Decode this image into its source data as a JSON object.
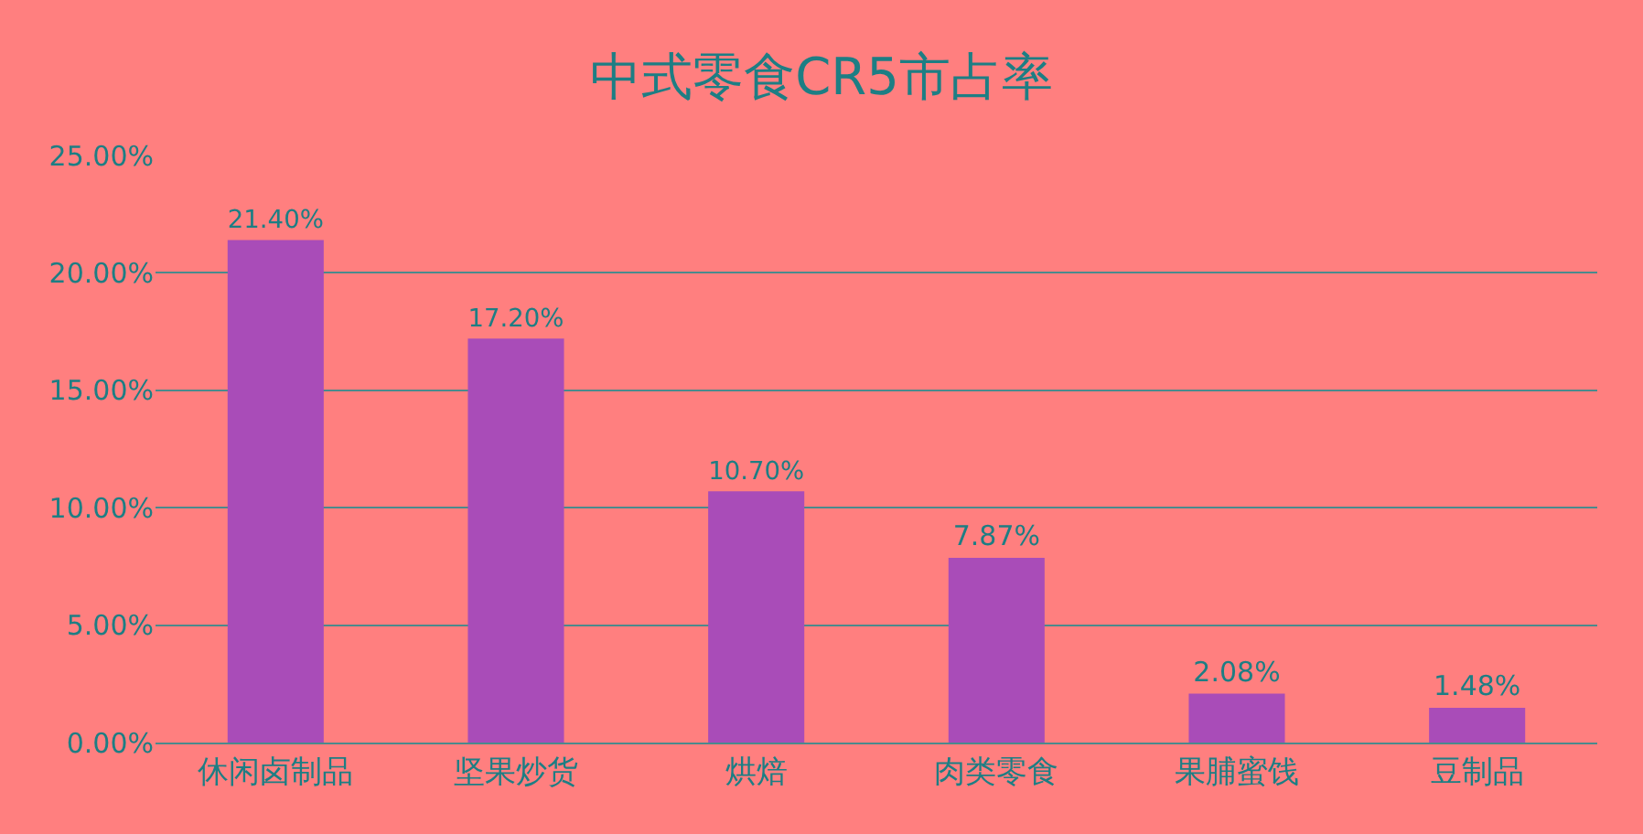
{
  "chart_data": {
    "type": "bar",
    "title": "中式零食CR5市占率",
    "categories": [
      "休闲卤制品",
      "坚果炒货",
      "烘焙",
      "肉类零食",
      "果脯蜜饯",
      "豆制品"
    ],
    "values": [
      21.4,
      17.2,
      10.7,
      7.87,
      2.08,
      1.48
    ],
    "value_labels": [
      "21.40%",
      "17.20%",
      "10.70%",
      "7.87%",
      "2.08%",
      "1.48%"
    ],
    "color": "#a94cb8",
    "ylim": [
      0,
      25
    ],
    "yticks": [
      {
        "value": 0,
        "label": "0.00%"
      },
      {
        "value": 5,
        "label": "5.00%"
      },
      {
        "value": 10,
        "label": "10.00%"
      },
      {
        "value": 15,
        "label": "15.00%"
      },
      {
        "value": 20,
        "label": "20.00%"
      },
      {
        "value": 25,
        "label": "25.00%"
      }
    ],
    "grid": "y"
  }
}
